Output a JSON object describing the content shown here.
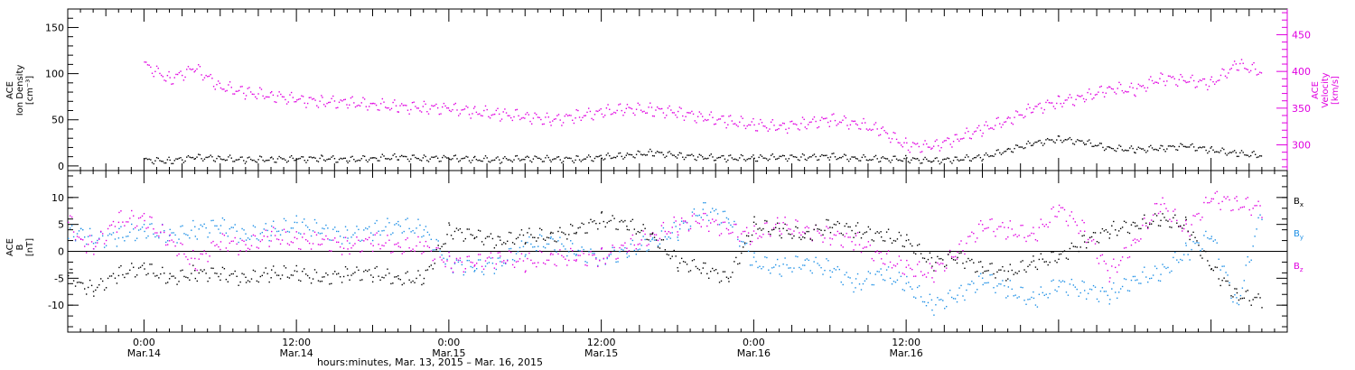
{
  "chart_data": [
    {
      "type": "scatter",
      "panel": "top",
      "ylabel_left": [
        "ACE",
        "Ion Density",
        "[cm⁻³]"
      ],
      "ylabel_right": [
        "ACE",
        "Velocity",
        "[km/s]"
      ],
      "ylim_left": [
        -5,
        170
      ],
      "yticks_left": [
        0,
        50,
        100,
        150
      ],
      "ylim_right": [
        265,
        485
      ],
      "yticks_right": [
        300,
        350,
        400,
        450
      ],
      "series": [
        {
          "color": "#000000",
          "axis": "left",
          "x": [
            0,
            2,
            4,
            6,
            8,
            10,
            12,
            14,
            16,
            18,
            20,
            22,
            24,
            26,
            28,
            30,
            32,
            34,
            36,
            38,
            40,
            42,
            44,
            46,
            48,
            50,
            52,
            54,
            56,
            58,
            60,
            62,
            64,
            66,
            68,
            70,
            72,
            74,
            76,
            78,
            80,
            82,
            84,
            86,
            88
          ],
          "y": [
            7,
            6,
            10,
            9,
            7,
            8,
            8,
            9,
            7,
            9,
            10,
            9,
            9,
            8,
            7,
            9,
            8,
            8,
            10,
            12,
            15,
            12,
            10,
            9,
            9,
            10,
            10,
            11,
            9,
            8,
            8,
            6,
            8,
            10,
            18,
            25,
            30,
            26,
            20,
            18,
            20,
            22,
            18,
            14,
            12
          ]
        },
        {
          "color": "#e000e0",
          "axis": "right",
          "x": [
            0,
            2,
            4,
            6,
            8,
            10,
            12,
            14,
            16,
            18,
            20,
            22,
            24,
            26,
            28,
            30,
            32,
            34,
            36,
            38,
            40,
            42,
            44,
            46,
            48,
            50,
            52,
            54,
            56,
            58,
            60,
            62,
            64,
            66,
            68,
            70,
            72,
            74,
            76,
            78,
            80,
            82,
            84,
            86,
            88
          ],
          "y": [
            410,
            390,
            405,
            380,
            372,
            368,
            362,
            360,
            358,
            356,
            352,
            352,
            350,
            346,
            342,
            340,
            334,
            340,
            345,
            350,
            348,
            345,
            338,
            333,
            328,
            325,
            330,
            335,
            330,
            320,
            300,
            298,
            310,
            322,
            335,
            350,
            360,
            365,
            378,
            375,
            392,
            388,
            385,
            410,
            400
          ]
        }
      ]
    },
    {
      "type": "scatter",
      "panel": "bottom",
      "ylabel": [
        "ACE",
        "B",
        "[nT]"
      ],
      "ylim": [
        -15,
        15
      ],
      "yticks": [
        -10,
        -5,
        0,
        5,
        10
      ],
      "xlim": [
        -6,
        90
      ],
      "xticks": [
        0,
        12,
        24,
        36,
        48,
        60,
        72,
        84
      ],
      "xlabel": "hours:minutes, Mar. 13, 2015 – Mar. 16, 2015",
      "series": [
        {
          "name": "Bx",
          "color": "#000000",
          "x": [
            -6,
            -5,
            -4,
            -2,
            0,
            2,
            4,
            6,
            8,
            10,
            12,
            14,
            16,
            18,
            20,
            22,
            24,
            26,
            28,
            30,
            32,
            34,
            36,
            38,
            40,
            42,
            44,
            46,
            48,
            50,
            52,
            54,
            56,
            58,
            60,
            62,
            64,
            66,
            68,
            70,
            72,
            74,
            76,
            78,
            80,
            82,
            84,
            86,
            88
          ],
          "y": [
            -4,
            -6,
            -7,
            -4,
            -3,
            -5,
            -4,
            -4,
            -5,
            -4,
            -4,
            -5,
            -4,
            -4,
            -5,
            -5,
            4,
            3,
            2,
            3,
            3,
            4,
            6,
            5,
            3,
            -2,
            -3,
            -5,
            5,
            4,
            3,
            5,
            4,
            3,
            2,
            -2,
            -1,
            -3,
            -4,
            -2,
            -1,
            2,
            4,
            5,
            6,
            5,
            -3,
            -8,
            -9
          ]
        },
        {
          "name": "By",
          "color": "#1e90e6",
          "x": [
            -6,
            -5,
            -4,
            -2,
            0,
            2,
            4,
            6,
            8,
            10,
            12,
            14,
            16,
            18,
            20,
            22,
            24,
            26,
            28,
            30,
            32,
            34,
            36,
            38,
            40,
            42,
            44,
            46,
            48,
            50,
            52,
            54,
            56,
            58,
            60,
            62,
            64,
            66,
            68,
            70,
            72,
            74,
            76,
            78,
            80,
            82,
            84,
            86,
            88
          ],
          "y": [
            3,
            4,
            2,
            3,
            4,
            3,
            4,
            5,
            3,
            4,
            5,
            4,
            3,
            4,
            5,
            4,
            -2,
            -3,
            -2,
            1,
            2,
            0,
            -1,
            0,
            2,
            4,
            8,
            6,
            -2,
            -3,
            -2,
            -3,
            -6,
            -4,
            -6,
            -10,
            -8,
            -5,
            -7,
            -9,
            -6,
            -7,
            -8,
            -5,
            -4,
            0,
            3,
            -10,
            8
          ]
        },
        {
          "name": "Bz",
          "color": "#e000e0",
          "x": [
            -6,
            -5,
            -4,
            -2,
            0,
            2,
            4,
            6,
            8,
            10,
            12,
            14,
            16,
            18,
            20,
            22,
            24,
            26,
            28,
            30,
            32,
            34,
            36,
            38,
            40,
            42,
            44,
            46,
            48,
            50,
            52,
            54,
            56,
            58,
            60,
            62,
            64,
            66,
            68,
            70,
            72,
            74,
            76,
            78,
            80,
            82,
            84,
            86,
            88
          ],
          "y": [
            6,
            2,
            1,
            6,
            6,
            2,
            -2,
            2,
            1,
            3,
            2,
            2,
            1,
            2,
            1,
            1,
            -2,
            -2,
            -1,
            -2,
            -1,
            -1,
            -1,
            1,
            3,
            5,
            6,
            4,
            3,
            5,
            4,
            3,
            2,
            -1,
            -3,
            -4,
            0,
            5,
            4,
            3,
            8,
            4,
            -4,
            2,
            9,
            4,
            10,
            9,
            8
          ]
        }
      ],
      "legend": [
        {
          "label": "B",
          "sub": "x",
          "color": "#000000"
        },
        {
          "label": "B",
          "sub": "y",
          "color": "#1e90e6"
        },
        {
          "label": "B",
          "sub": "z",
          "color": "#e000e0"
        }
      ]
    }
  ],
  "xtick_labels": [
    {
      "h": 0,
      "t1": "0:00",
      "t2": "Mar.14"
    },
    {
      "h": 12,
      "t1": "12:00",
      "t2": "Mar.14"
    },
    {
      "h": 24,
      "t1": "0:00",
      "t2": "Mar.15"
    },
    {
      "h": 36,
      "t1": "12:00",
      "t2": "Mar.15"
    },
    {
      "h": 48,
      "t1": "0:00",
      "t2": "Mar.16"
    },
    {
      "h": 60,
      "t1": "12:00",
      "t2": "Mar.16"
    }
  ]
}
